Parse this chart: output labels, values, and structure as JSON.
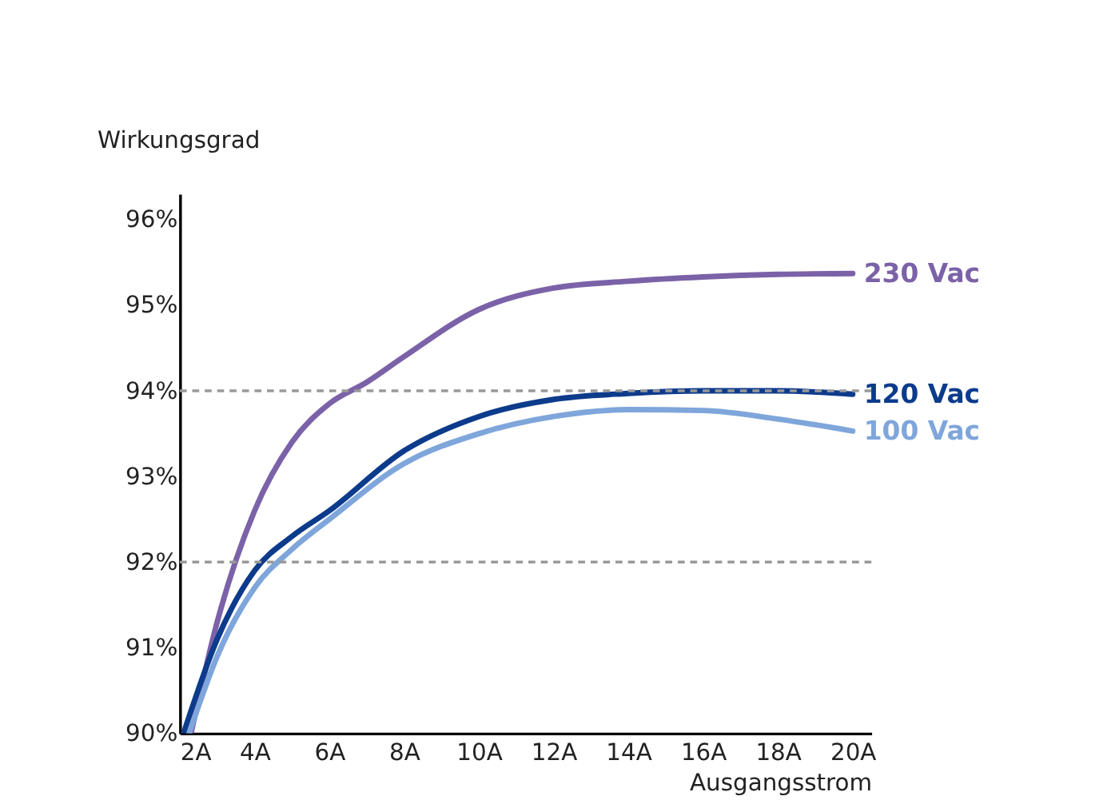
{
  "chart_data": {
    "type": "line",
    "xlabel": "Ausgangsstrom",
    "ylabel": "Wirkungsgrad",
    "xlim": [
      2,
      20.5
    ],
    "ylim": [
      90,
      96.3
    ],
    "xticks": [
      {
        "value": 2,
        "label": "2A"
      },
      {
        "value": 4,
        "label": "4A"
      },
      {
        "value": 6,
        "label": "6A"
      },
      {
        "value": 8,
        "label": "8A"
      },
      {
        "value": 10,
        "label": "10A"
      },
      {
        "value": 12,
        "label": "12A"
      },
      {
        "value": 14,
        "label": "14A"
      },
      {
        "value": 16,
        "label": "16A"
      },
      {
        "value": 18,
        "label": "18A"
      },
      {
        "value": 20,
        "label": "20A"
      }
    ],
    "yticks": [
      {
        "value": 90,
        "label": "90%"
      },
      {
        "value": 91,
        "label": "91%"
      },
      {
        "value": 92,
        "label": "92%"
      },
      {
        "value": 93,
        "label": "93%"
      },
      {
        "value": 94,
        "label": "94%"
      },
      {
        "value": 95,
        "label": "95%"
      },
      {
        "value": 96,
        "label": "96%"
      }
    ],
    "grid": false,
    "legend": false,
    "marker": "none",
    "line_style": "solid",
    "ref_lines": [
      {
        "axis": "y",
        "value": 92,
        "color": "#999999",
        "line_style": "dashed"
      },
      {
        "axis": "y",
        "value": 94,
        "color": "#999999",
        "line_style": "dashed"
      }
    ],
    "series": [
      {
        "name": "230 Vac",
        "color": "#7b62a8",
        "x": [
          2.3,
          3,
          4,
          5,
          6,
          7,
          8,
          10,
          12,
          14,
          16,
          18,
          20
        ],
        "values": [
          90,
          91.3,
          92.6,
          93.4,
          93.85,
          94.1,
          94.4,
          94.95,
          95.2,
          95.28,
          95.33,
          95.36,
          95.37
        ]
      },
      {
        "name": "120 Vac",
        "color": "#0d3b8c",
        "x": [
          2.1,
          3,
          4,
          5,
          6,
          8,
          10,
          12,
          14,
          16,
          18,
          20
        ],
        "values": [
          90,
          91.1,
          91.9,
          92.3,
          92.6,
          93.3,
          93.7,
          93.9,
          93.97,
          94.0,
          94.0,
          93.96
        ]
      },
      {
        "name": "100 Vac",
        "color": "#7fa6db",
        "x": [
          2.25,
          3,
          4,
          5,
          6,
          8,
          10,
          12,
          14,
          16,
          18,
          20
        ],
        "values": [
          90,
          90.9,
          91.7,
          92.15,
          92.5,
          93.15,
          93.5,
          93.7,
          93.78,
          93.77,
          93.67,
          93.53
        ]
      }
    ]
  }
}
